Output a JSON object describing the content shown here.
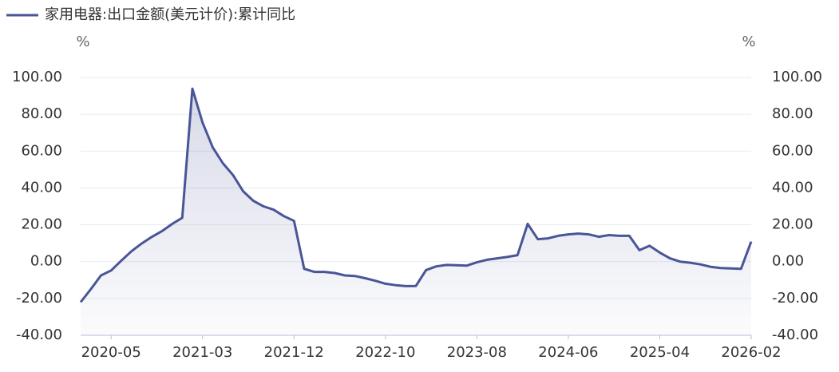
{
  "chart_data": {
    "type": "line",
    "title": null,
    "categories": [
      null,
      null,
      null,
      "2020-05",
      null,
      null,
      null,
      null,
      null,
      null,
      null,
      null,
      "2021-03",
      null,
      null,
      null,
      null,
      null,
      null,
      null,
      null,
      "2021-12",
      null,
      null,
      null,
      null,
      null,
      null,
      null,
      null,
      "2022-10",
      null,
      null,
      null,
      null,
      null,
      null,
      null,
      null,
      "2023-08",
      null,
      null,
      null,
      null,
      null,
      null,
      null,
      null,
      "2024-06",
      null,
      null,
      null,
      null,
      null,
      null,
      null,
      null,
      "2025-04",
      null,
      null,
      null,
      null,
      null,
      null,
      null,
      null,
      "2026-02"
    ],
    "series": [
      {
        "name": "家用电器:出口金额(美元计价):累计同比",
        "color": "#4a5597",
        "values": [
          -22,
          -15,
          -7.5,
          -4.8,
          0.5,
          5.6,
          9.8,
          13.4,
          16.5,
          20.4,
          23.8,
          93.9,
          75.5,
          62,
          53.4,
          47,
          38.2,
          33,
          30,
          28.2,
          24.7,
          22.1,
          -3.9,
          -5.6,
          -5.6,
          -6.2,
          -7.5,
          -7.8,
          -9,
          -10.4,
          -12,
          -12.8,
          -13.3,
          -13.2,
          -4.6,
          -2.6,
          -1.8,
          -2,
          -2.2,
          -0.4,
          1,
          1.8,
          2.5,
          3.5,
          20.5,
          12.2,
          12.6,
          14,
          14.8,
          15.2,
          14.8,
          13.5,
          14.4,
          14,
          14,
          6.2,
          8.6,
          4.9,
          1.8,
          0,
          -0.6,
          -1.5,
          -2.8,
          -3.5,
          -3.7,
          -3.9,
          10.9
        ]
      }
    ],
    "y_unit": "%",
    "y2_unit": "%",
    "ylim": [
      -40,
      100
    ],
    "yticks": [
      {
        "value": -40,
        "label": "-40.00"
      },
      {
        "value": -20,
        "label": "-20.00"
      },
      {
        "value": 0,
        "label": "0.00"
      },
      {
        "value": 20,
        "label": "20.00"
      },
      {
        "value": 40,
        "label": "40.00"
      },
      {
        "value": 60,
        "label": "60.00"
      },
      {
        "value": 80,
        "label": "80.00"
      },
      {
        "value": 100,
        "label": "100.00"
      }
    ],
    "y2lim": [
      -40,
      100
    ],
    "y2ticks": [
      {
        "value": -40,
        "label": "-40.00"
      },
      {
        "value": -20,
        "label": "-20.00"
      },
      {
        "value": 0,
        "label": "0.00"
      },
      {
        "value": 20,
        "label": "20.00"
      },
      {
        "value": 40,
        "label": "40.00"
      },
      {
        "value": 60,
        "label": "60.00"
      },
      {
        "value": 80,
        "label": "80.00"
      },
      {
        "value": 100,
        "label": "100.00"
      }
    ],
    "grid": true,
    "area": true,
    "legend": "top-left"
  }
}
